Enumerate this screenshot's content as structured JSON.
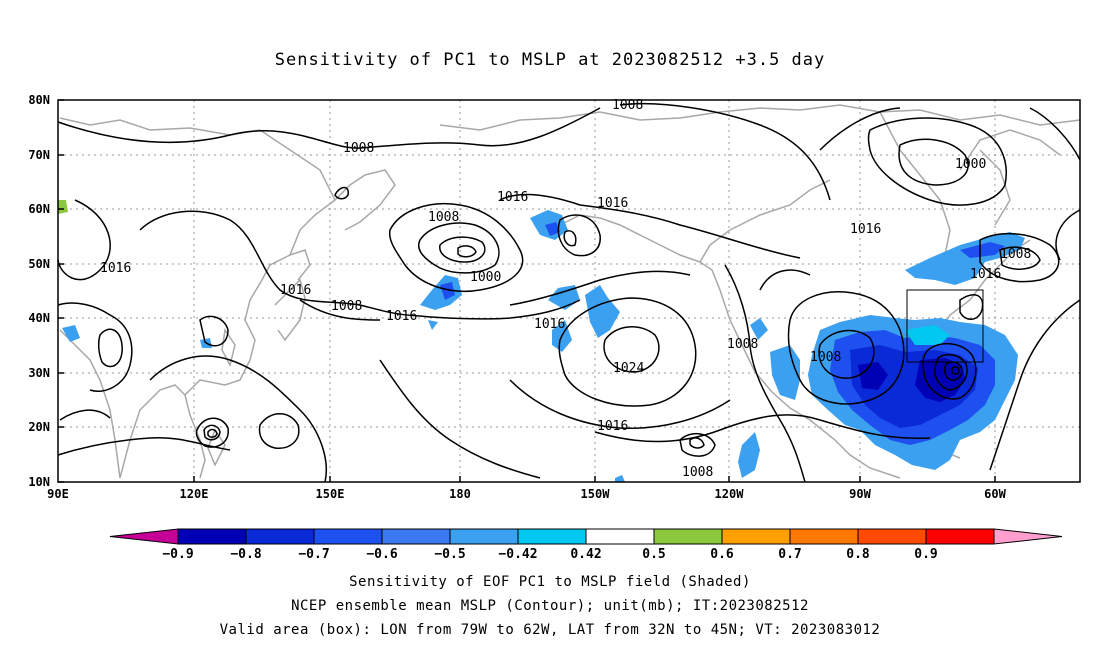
{
  "title": "Sensitivity of PC1 to MSLP at 2023082512 +3.5 day",
  "lat_labels": [
    "80N",
    "70N",
    "60N",
    "50N",
    "40N",
    "30N",
    "20N",
    "10N"
  ],
  "lon_labels": [
    "90E",
    "120E",
    "150E",
    "180",
    "150W",
    "120W",
    "90W",
    "60W"
  ],
  "contour_labels": [
    "1008",
    "1008",
    "1000",
    "1016",
    "1016",
    "1016",
    "1008",
    "1000",
    "1016",
    "1016",
    "1008",
    "1016",
    "1016",
    "1024",
    "1008",
    "1008",
    "1016",
    "1008",
    "1008",
    "1016"
  ],
  "colorbar": {
    "labels": [
      "-0.9",
      "-0.8",
      "-0.7",
      "-0.6",
      "-0.5",
      "-0.42",
      "0.42",
      "0.5",
      "0.6",
      "0.7",
      "0.8",
      "0.9"
    ],
    "colors": [
      "#c40096",
      "#0000b4",
      "#0a2ad8",
      "#1e50f0",
      "#3c78f0",
      "#3ca0f0",
      "#00c8f0",
      "#ffffff",
      "#8cc83c",
      "#ffa000",
      "#ff7800",
      "#ff4a00",
      "#ff0000",
      "#ff9ecf"
    ]
  },
  "captions": [
    "Sensitivity of EOF PC1 to MSLP field (Shaded)",
    "NCEP ensemble mean MSLP (Contour); unit(mb); IT:2023082512",
    "Valid area (box): LON from 79W to 62W, LAT from 32N to 45N; VT: 2023083012"
  ]
}
